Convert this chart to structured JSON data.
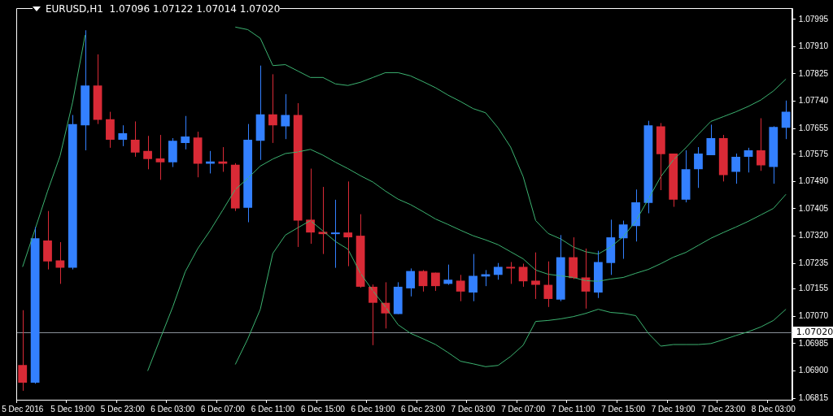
{
  "chart_data": {
    "type": "candlestick",
    "title": "EURUSD,H1  1.07096 1.07122 1.07014 1.07020",
    "categories": [
      "5 Dec 2016",
      null,
      null,
      null,
      "5 Dec 19:00",
      null,
      null,
      null,
      "5 Dec 23:00",
      null,
      null,
      null,
      "6 Dec 03:00",
      null,
      null,
      null,
      "6 Dec 07:00",
      null,
      null,
      null,
      "6 Dec 11:00",
      null,
      null,
      null,
      "6 Dec 15:00",
      null,
      null,
      null,
      "6 Dec 19:00",
      null,
      null,
      null,
      "6 Dec 23:00",
      null,
      null,
      null,
      "7 Dec 03:00",
      null,
      null,
      null,
      "7 Dec 07:00",
      null,
      null,
      null,
      "7 Dec 11:00",
      null,
      null,
      null,
      "7 Dec 15:00",
      null,
      null,
      null,
      "7 Dec 19:00",
      null,
      null,
      null,
      "7 Dec 23:00",
      null,
      null,
      null,
      "8 Dec 03:00",
      null
    ],
    "ohlc": [
      [
        1.06918,
        1.07089,
        1.06838,
        1.06863
      ],
      [
        1.06863,
        1.07348,
        1.0686,
        1.07313
      ],
      [
        1.07306,
        1.07398,
        1.07216,
        1.07241
      ],
      [
        1.07244,
        1.07301,
        1.07171,
        1.07221
      ],
      [
        1.07221,
        1.07697,
        1.07216,
        1.07669
      ],
      [
        1.07665,
        1.07961,
        1.07587,
        1.07789
      ],
      [
        1.07789,
        1.07886,
        1.07669,
        1.07682
      ],
      [
        1.07684,
        1.07707,
        1.07595,
        1.0762
      ],
      [
        1.0762,
        1.07665,
        1.076,
        1.0764
      ],
      [
        1.0762,
        1.07677,
        1.07567,
        1.0758
      ],
      [
        1.07585,
        1.07632,
        1.07528,
        1.0756
      ],
      [
        1.07562,
        1.07635,
        1.07495,
        1.0755
      ],
      [
        1.0755,
        1.07625,
        1.07535,
        1.07617
      ],
      [
        1.0761,
        1.07694,
        1.0759,
        1.0763
      ],
      [
        1.07627,
        1.07645,
        1.07503,
        1.07545
      ],
      [
        1.07545,
        1.07585,
        1.07515,
        1.07552
      ],
      [
        1.07552,
        1.07597,
        1.0752,
        1.07545
      ],
      [
        1.07542,
        1.07547,
        1.07398,
        1.07406
      ],
      [
        1.07408,
        1.07669,
        1.07363,
        1.0762
      ],
      [
        1.07617,
        1.07851,
        1.07557,
        1.07699
      ],
      [
        1.07699,
        1.07824,
        1.0761,
        1.07665
      ],
      [
        1.07662,
        1.07762,
        1.07622,
        1.07697
      ],
      [
        1.07697,
        1.07734,
        1.07286,
        1.07368
      ],
      [
        1.07371,
        1.0753,
        1.07296,
        1.07331
      ],
      [
        1.07333,
        1.07473,
        1.07264,
        1.07326
      ],
      [
        1.07326,
        1.07433,
        1.07221,
        1.07331
      ],
      [
        1.07331,
        1.0749,
        1.07226,
        1.07316
      ],
      [
        1.07321,
        1.07388,
        1.07159,
        1.07162
      ],
      [
        1.07162,
        1.07169,
        1.0698,
        1.07112
      ],
      [
        1.07112,
        1.07176,
        1.07032,
        1.07079
      ],
      [
        1.07077,
        1.07176,
        1.07077,
        1.07162
      ],
      [
        1.07157,
        1.07219,
        1.07132,
        1.07211
      ],
      [
        1.07211,
        1.07214,
        1.07147,
        1.07164
      ],
      [
        1.07206,
        1.07206,
        1.07149,
        1.07164
      ],
      [
        1.07171,
        1.07231,
        1.07168,
        1.07184
      ],
      [
        1.07181,
        1.07199,
        1.07117,
        1.07147
      ],
      [
        1.07144,
        1.07264,
        1.07117,
        1.07196
      ],
      [
        1.07194,
        1.07214,
        1.07164,
        1.07201
      ],
      [
        1.07199,
        1.07236,
        1.07184,
        1.07224
      ],
      [
        1.07224,
        1.07239,
        1.07171,
        1.07219
      ],
      [
        1.07224,
        1.07234,
        1.07162,
        1.07179
      ],
      [
        1.07181,
        1.07269,
        1.07124,
        1.07168
      ],
      [
        1.07168,
        1.07241,
        1.07099,
        1.07124
      ],
      [
        1.07122,
        1.07323,
        1.07117,
        1.07254
      ],
      [
        1.07254,
        1.07316,
        1.07186,
        1.07189
      ],
      [
        1.07191,
        1.07281,
        1.07094,
        1.07147
      ],
      [
        1.07144,
        1.07274,
        1.07127,
        1.07239
      ],
      [
        1.07236,
        1.07371,
        1.07199,
        1.07316
      ],
      [
        1.07313,
        1.07368,
        1.07249,
        1.07356
      ],
      [
        1.07351,
        1.07465,
        1.07303,
        1.07425
      ],
      [
        1.07423,
        1.07679,
        1.07391,
        1.07665
      ],
      [
        1.07662,
        1.07672,
        1.07463,
        1.07575
      ],
      [
        1.07577,
        1.07577,
        1.07411,
        1.07433
      ],
      [
        1.07433,
        1.07587,
        1.07425,
        1.07528
      ],
      [
        1.07528,
        1.07597,
        1.0747,
        1.07577
      ],
      [
        1.07572,
        1.07667,
        1.07572,
        1.07625
      ],
      [
        1.07625,
        1.07635,
        1.0749,
        1.0751
      ],
      [
        1.0752,
        1.07577,
        1.07483,
        1.07567
      ],
      [
        1.07567,
        1.07595,
        1.07518,
        1.07587
      ],
      [
        1.07587,
        1.07687,
        1.07523,
        1.0754
      ],
      [
        1.07535,
        1.07662,
        1.07483,
        1.0766
      ],
      [
        1.07657,
        1.07742,
        1.07622,
        1.07707
      ]
    ],
    "colors": [
      "#d92a36",
      "#3380ff",
      "#d92a36",
      "#d92a36",
      "#3380ff",
      "#3380ff",
      "#d92a36",
      "#d92a36",
      "#3380ff",
      "#d92a36",
      "#d92a36",
      "#d92a36",
      "#3380ff",
      "#3380ff",
      "#d92a36",
      "#3380ff",
      "#d92a36",
      "#d92a36",
      "#3380ff",
      "#3380ff",
      "#d92a36",
      "#3380ff",
      "#d92a36",
      "#d92a36",
      "#d92a36",
      "#3380ff",
      "#d92a36",
      "#d92a36",
      "#d92a36",
      "#d92a36",
      "#3380ff",
      "#3380ff",
      "#d92a36",
      "#d92a36",
      "#3380ff",
      "#d92a36",
      "#3380ff",
      "#3380ff",
      "#3380ff",
      "#d92a36",
      "#d92a36",
      "#d92a36",
      "#d92a36",
      "#3380ff",
      "#d92a36",
      "#d92a36",
      "#3380ff",
      "#3380ff",
      "#3380ff",
      "#3380ff",
      "#3380ff",
      "#d92a36",
      "#d92a36",
      "#3380ff",
      "#3380ff",
      "#3380ff",
      "#d92a36",
      "#3380ff",
      "#3380ff",
      "#d92a36",
      "#3380ff",
      "#3380ff"
    ],
    "series": [
      {
        "type": "line",
        "color": "#3cb371",
        "values": [
          1.07224,
          1.07341,
          1.0746,
          1.0757,
          1.07737,
          1.07946,
          null,
          null,
          null,
          null,
          null,
          null,
          null,
          null,
          null,
          null,
          null,
          1.07971,
          1.07963,
          1.07936,
          1.07851,
          1.07854,
          1.07834,
          1.07814,
          1.07814,
          1.07794,
          1.07789,
          1.07799,
          1.07814,
          1.07829,
          1.07829,
          1.07819,
          1.07801,
          1.07782,
          1.07759,
          1.07739,
          1.07717,
          1.07704,
          1.07657,
          1.07597,
          1.07505,
          1.07368,
          1.07328,
          1.07311,
          1.07286,
          1.07271,
          1.07264,
          1.07286,
          1.07318,
          1.07366,
          1.07435,
          1.07505,
          1.07557,
          1.07595,
          1.07637,
          1.07677,
          1.07692,
          1.07707,
          1.07724,
          1.07744,
          1.07772,
          1.07809
        ]
      },
      {
        "type": "line",
        "color": "#3cb371",
        "values": [
          null,
          null,
          null,
          null,
          null,
          null,
          null,
          null,
          null,
          null,
          1.069,
          1.07,
          1.07099,
          1.07209,
          1.07281,
          1.07338,
          1.07401,
          1.07465,
          1.075,
          1.07538,
          1.0756,
          1.07577,
          1.07582,
          1.0759,
          1.07572,
          1.0755,
          1.0753,
          1.07508,
          1.07488,
          1.0746,
          1.07435,
          1.07418,
          1.07396,
          1.07373,
          1.07356,
          1.07338,
          1.07321,
          1.07308,
          1.07293,
          1.07271,
          1.07249,
          1.07214,
          1.07201,
          1.07196,
          1.07191,
          1.07181,
          1.07179,
          1.07186,
          1.07191,
          1.07204,
          1.07216,
          1.07234,
          1.07254,
          1.07269,
          1.07291,
          1.07313,
          1.07331,
          1.07348,
          1.07366,
          1.07386,
          1.07406,
          1.0745
        ]
      },
      {
        "type": "line",
        "color": "#3cb371",
        "values": [
          null,
          null,
          null,
          null,
          null,
          null,
          null,
          null,
          null,
          null,
          null,
          null,
          null,
          null,
          null,
          null,
          null,
          1.0692,
          1.07,
          1.07092,
          1.07266,
          1.07323,
          1.07346,
          1.07368,
          1.07336,
          1.07303,
          1.07279,
          1.07204,
          1.07149,
          1.07099,
          1.07044,
          1.07017,
          1.07,
          1.06982,
          1.06957,
          1.0693,
          1.06922,
          1.06913,
          1.06917,
          1.06945,
          1.0698,
          1.07054,
          1.07057,
          1.07062,
          1.07069,
          1.07079,
          1.07092,
          1.07082,
          1.07079,
          1.07072,
          1.07017,
          1.06977,
          1.06982,
          1.06982,
          1.06982,
          1.06985,
          1.06997,
          1.0701,
          1.07022,
          1.07037,
          1.07057,
          1.07092
        ]
      }
    ],
    "ylim": [
      1.0681,
      1.0803
    ],
    "yticks": [
      1.07995,
      {
        "value": 1.0791,
        "label": "1.07910"
      },
      1.07825,
      {
        "value": 1.0774,
        "label": "1.07740"
      },
      1.07655,
      1.07575,
      {
        "value": 1.0749,
        "label": "1.07490"
      },
      1.07405,
      {
        "value": 1.0732,
        "label": "1.07320"
      },
      1.07235,
      1.07155,
      {
        "value": 1.0707,
        "label": "1.07070"
      },
      1.06985,
      {
        "value": 1.069,
        "label": "1.06900"
      },
      1.06815
    ],
    "ref_lines": [
      {
        "axis": "y",
        "value": 1.0702,
        "label": "1.07020",
        "color": "#8a9099"
      }
    ],
    "grid": false,
    "legend": false,
    "marker": "none"
  }
}
